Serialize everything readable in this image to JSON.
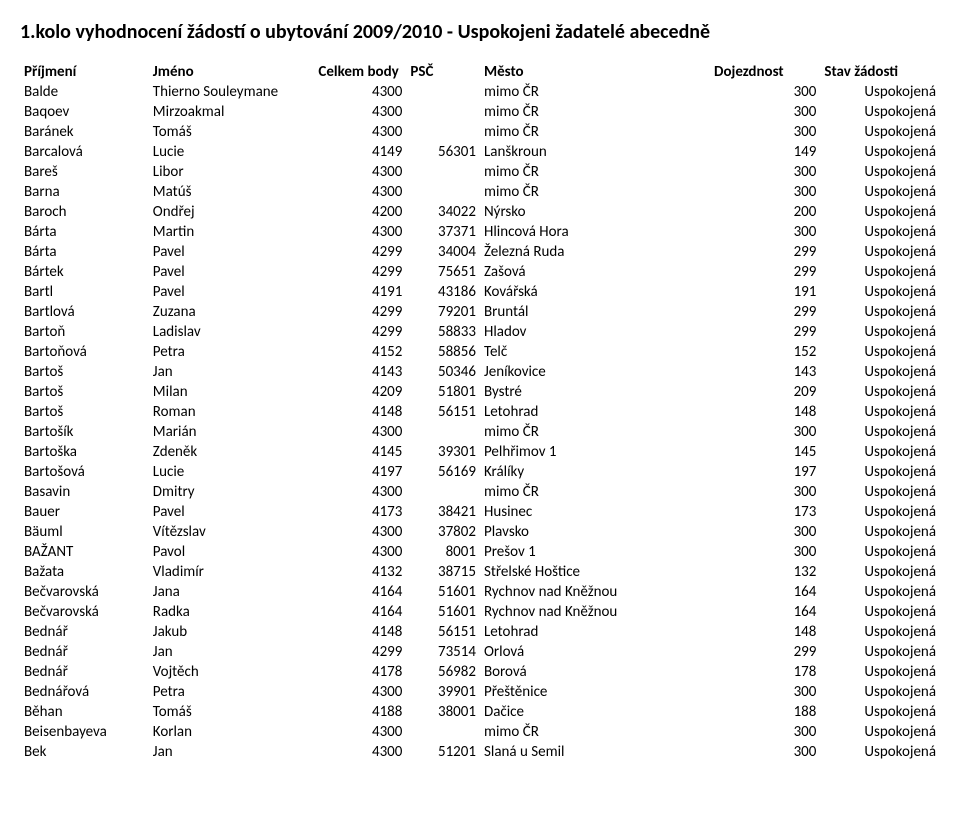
{
  "title": "1.kolo vyhodnocení žádostí o ubytování 2009/2010  - Uspokojeni žadatelé abecedně",
  "columns": [
    "Příjmení",
    "Jméno",
    "Celkem body",
    "PSČ",
    "Město",
    "Dojezdnost",
    "Stav žádosti"
  ],
  "rows": [
    [
      "Balde",
      "Thierno Souleymane",
      "4300",
      "",
      "mimo ČR",
      "300",
      "Uspokojená"
    ],
    [
      "Baqoev",
      "Mirzoakmal",
      "4300",
      "",
      "mimo ČR",
      "300",
      "Uspokojená"
    ],
    [
      "Baránek",
      "Tomáš",
      "4300",
      "",
      "mimo ČR",
      "300",
      "Uspokojená"
    ],
    [
      "Barcalová",
      "Lucie",
      "4149",
      "56301",
      "Lanškroun",
      "149",
      "Uspokojená"
    ],
    [
      "Bareš",
      "Libor",
      "4300",
      "",
      "mimo ČR",
      "300",
      "Uspokojená"
    ],
    [
      "Barna",
      "Matúš",
      "4300",
      "",
      "mimo ČR",
      "300",
      "Uspokojená"
    ],
    [
      "Baroch",
      "Ondřej",
      "4200",
      "34022",
      "Nýrsko",
      "200",
      "Uspokojená"
    ],
    [
      "Bárta",
      "Martin",
      "4300",
      "37371",
      "Hlincová Hora",
      "300",
      "Uspokojená"
    ],
    [
      "Bárta",
      "Pavel",
      "4299",
      "34004",
      "Železná Ruda",
      "299",
      "Uspokojená"
    ],
    [
      "Bártek",
      "Pavel",
      "4299",
      "75651",
      "Zašová",
      "299",
      "Uspokojená"
    ],
    [
      "Bartl",
      "Pavel",
      "4191",
      "43186",
      "Kovářská",
      "191",
      "Uspokojená"
    ],
    [
      "Bartlová",
      "Zuzana",
      "4299",
      "79201",
      "Bruntál",
      "299",
      "Uspokojená"
    ],
    [
      "Bartoň",
      "Ladislav",
      "4299",
      "58833",
      "Hladov",
      "299",
      "Uspokojená"
    ],
    [
      "Bartoňová",
      "Petra",
      "4152",
      "58856",
      "Telč",
      "152",
      "Uspokojená"
    ],
    [
      "Bartoš",
      "Jan",
      "4143",
      "50346",
      "Jeníkovice",
      "143",
      "Uspokojená"
    ],
    [
      "Bartoš",
      "Milan",
      "4209",
      "51801",
      "Bystré",
      "209",
      "Uspokojená"
    ],
    [
      "Bartoš",
      "Roman",
      "4148",
      "56151",
      "Letohrad",
      "148",
      "Uspokojená"
    ],
    [
      "Bartošík",
      "Marián",
      "4300",
      "",
      "mimo ČR",
      "300",
      "Uspokojená"
    ],
    [
      "Bartoška",
      "Zdeněk",
      "4145",
      "39301",
      "Pelhřimov 1",
      "145",
      "Uspokojená"
    ],
    [
      "Bartošová",
      "Lucie",
      "4197",
      "56169",
      "Králíky",
      "197",
      "Uspokojená"
    ],
    [
      "Basavin",
      "Dmitry",
      "4300",
      "",
      "mimo ČR",
      "300",
      "Uspokojená"
    ],
    [
      "Bauer",
      "Pavel",
      "4173",
      "38421",
      "Husinec",
      "173",
      "Uspokojená"
    ],
    [
      "Bäuml",
      "Vítězslav",
      "4300",
      "37802",
      "Plavsko",
      "300",
      "Uspokojená"
    ],
    [
      "BAŽANT",
      "Pavol",
      "4300",
      "8001",
      "Prešov 1",
      "300",
      "Uspokojená"
    ],
    [
      "Bažata",
      "Vladimír",
      "4132",
      "38715",
      "Střelské Hoštice",
      "132",
      "Uspokojená"
    ],
    [
      "Bečvarovská",
      "Jana",
      "4164",
      "51601",
      "Rychnov nad Kněžnou",
      "164",
      "Uspokojená"
    ],
    [
      "Bečvarovská",
      "Radka",
      "4164",
      "51601",
      "Rychnov nad Kněžnou",
      "164",
      "Uspokojená"
    ],
    [
      "Bednář",
      "Jakub",
      "4148",
      "56151",
      "Letohrad",
      "148",
      "Uspokojená"
    ],
    [
      "Bednář",
      "Jan",
      "4299",
      "73514",
      "Orlová",
      "299",
      "Uspokojená"
    ],
    [
      "Bednář",
      "Vojtěch",
      "4178",
      "56982",
      "Borová",
      "178",
      "Uspokojená"
    ],
    [
      "Bednářová",
      "Petra",
      "4300",
      "39901",
      "Přeštěnice",
      "300",
      "Uspokojená"
    ],
    [
      "Běhan",
      "Tomáš",
      "4188",
      "38001",
      "Dačice",
      "188",
      "Uspokojená"
    ],
    [
      "Beisenbayeva",
      "Korlan",
      "4300",
      "",
      "mimo ČR",
      "300",
      "Uspokojená"
    ],
    [
      "Bek",
      "Jan",
      "4300",
      "51201",
      "Slaná u Semil",
      "300",
      "Uspokojená"
    ]
  ]
}
